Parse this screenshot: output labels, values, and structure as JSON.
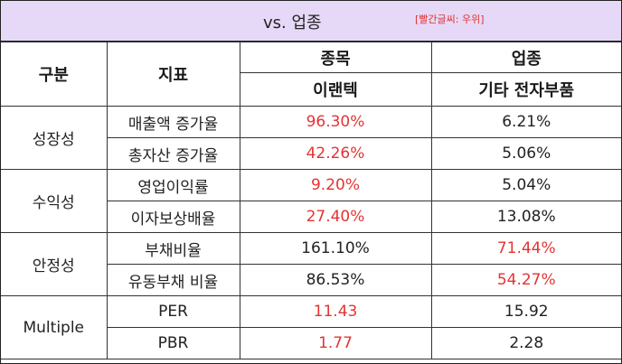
{
  "header": {
    "title": "vs. 업종",
    "note": "[빨간글씨: 우위]"
  },
  "columns": {
    "group": "구분",
    "metric": "지표",
    "stock": "종목",
    "industry": "업종",
    "stock_name": "이랜텍",
    "industry_name": "기타 전자부품"
  },
  "colors": {
    "header_bg": "#e6d9f7",
    "highlight": "#e53333"
  },
  "groups": [
    {
      "label": "성장성",
      "rows": [
        {
          "metric": "매출액 증가율",
          "stock": "96.30%",
          "industry": "6.21%",
          "winner": "stock"
        },
        {
          "metric": "총자산 증가율",
          "stock": "42.26%",
          "industry": "5.06%",
          "winner": "stock"
        }
      ]
    },
    {
      "label": "수익성",
      "rows": [
        {
          "metric": "영업이익률",
          "stock": "9.20%",
          "industry": "5.04%",
          "winner": "stock"
        },
        {
          "metric": "이자보상배율",
          "stock": "27.40%",
          "industry": "13.08%",
          "winner": "stock"
        }
      ]
    },
    {
      "label": "안정성",
      "rows": [
        {
          "metric": "부채비율",
          "stock": "161.10%",
          "industry": "71.44%",
          "winner": "industry"
        },
        {
          "metric": "유동부채 비율",
          "stock": "86.53%",
          "industry": "54.27%",
          "winner": "industry"
        }
      ]
    },
    {
      "label": "Multiple",
      "rows": [
        {
          "metric": "PER",
          "stock": "11.43",
          "industry": "15.92",
          "winner": "stock"
        },
        {
          "metric": "PBR",
          "stock": "1.77",
          "industry": "2.28",
          "winner": "stock"
        }
      ]
    }
  ]
}
